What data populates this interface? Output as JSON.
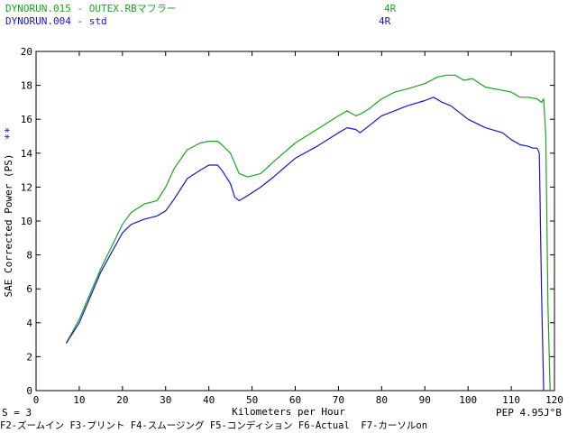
{
  "header": {
    "run1_name": "DYNORUN.015 - OUTEX.RBマフラー",
    "run1_gear": "4R",
    "run2_name": "DYNORUN.004 - std",
    "run2_gear": "4R"
  },
  "marker": "**",
  "footer": {
    "smoothing": "S = 3",
    "peak": "PEP 4.95J°B",
    "function_keys": "F2-ズームイン F3-プリント F4-スムージング F5-コンディション F6-Actual  F7-カーソルon"
  },
  "chart_data": {
    "type": "line",
    "xlabel": "Kilometers per Hour",
    "ylabel": "SAE Corrected Power (PS)",
    "xlim": [
      0,
      120
    ],
    "ylim": [
      0,
      20
    ],
    "xticks": [
      "0",
      "10",
      "20",
      "30",
      "40",
      "50",
      "60",
      "70",
      "80",
      "90",
      "100",
      "110",
      "120"
    ],
    "yticks": [
      "0",
      "2",
      "4",
      "6",
      "8",
      "10",
      "12",
      "14",
      "16",
      "18",
      "20"
    ],
    "grid": false,
    "colors": {
      "green": "#1fa31f",
      "blue": "#1616d6"
    },
    "series": [
      {
        "name": "DYNORUN.015 - OUTEX.RBマフラー",
        "color": "#1fa31f",
        "x": [
          7,
          10,
          15,
          20,
          22,
          25,
          28,
          30,
          32,
          35,
          38,
          40,
          42,
          43,
          45,
          47,
          49,
          52,
          55,
          60,
          65,
          70,
          72,
          74,
          75,
          77,
          80,
          83,
          86,
          90,
          93,
          95,
          97,
          99,
          101,
          104,
          108,
          110,
          112,
          114,
          116,
          117,
          117.5,
          118,
          118.5,
          119
        ],
        "y": [
          2.8,
          4.2,
          7.2,
          9.8,
          10.5,
          11.0,
          11.2,
          12.0,
          13.1,
          14.2,
          14.6,
          14.7,
          14.7,
          14.5,
          14.0,
          12.8,
          12.6,
          12.8,
          13.5,
          14.6,
          15.4,
          16.2,
          16.5,
          16.2,
          16.3,
          16.6,
          17.2,
          17.6,
          17.8,
          18.1,
          18.5,
          18.6,
          18.6,
          18.3,
          18.4,
          17.9,
          17.7,
          17.6,
          17.3,
          17.3,
          17.2,
          17.0,
          17.2,
          15.0,
          5.0,
          0.0
        ]
      },
      {
        "name": "DYNORUN.004 - std",
        "color": "#1616d6",
        "x": [
          7,
          10,
          15,
          20,
          22,
          25,
          28,
          30,
          32,
          35,
          38,
          40,
          42,
          43,
          45,
          46,
          47,
          49,
          52,
          55,
          60,
          65,
          70,
          72,
          74,
          75,
          77,
          80,
          83,
          86,
          90,
          92,
          94,
          96,
          98,
          100,
          104,
          108,
          110,
          112,
          114,
          115,
          116,
          116.5,
          117,
          117.5
        ],
        "y": [
          2.8,
          4.0,
          7.0,
          9.3,
          9.8,
          10.1,
          10.3,
          10.6,
          11.3,
          12.5,
          13.0,
          13.3,
          13.3,
          13.0,
          12.2,
          11.4,
          11.2,
          11.5,
          12.0,
          12.6,
          13.7,
          14.4,
          15.2,
          15.5,
          15.4,
          15.2,
          15.6,
          16.2,
          16.5,
          16.8,
          17.1,
          17.3,
          17.0,
          16.8,
          16.4,
          16.0,
          15.5,
          15.2,
          14.8,
          14.5,
          14.4,
          14.3,
          14.3,
          14.0,
          6.0,
          0.0
        ]
      }
    ]
  }
}
